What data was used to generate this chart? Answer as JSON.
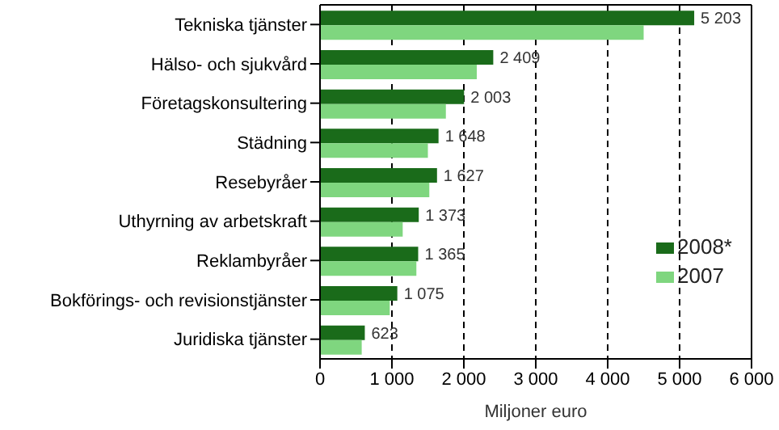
{
  "chart_data": {
    "type": "bar",
    "orientation": "horizontal",
    "xlabel": "Miljoner euro",
    "categories": [
      "Tekniska tjänster",
      "Hälso- och sjukvård",
      "Företagskonsultering",
      "Städning",
      "Resebyråer",
      "Uthyrning av arbetskraft",
      "Reklambyråer",
      "Bokförings- och revisionstjänster",
      "Juridiska tjänster"
    ],
    "series": [
      {
        "name": "2008*",
        "color": "#1a6b1a",
        "values": [
          5203,
          2409,
          2003,
          1648,
          1627,
          1373,
          1365,
          1075,
          623
        ],
        "value_labels": [
          "5 203",
          "2 409",
          "2 003",
          "1 648",
          "1 627",
          "1 373",
          "1 365",
          "1 075",
          "623"
        ]
      },
      {
        "name": "2007",
        "color": "#7fd67f",
        "values": [
          4500,
          2180,
          1750,
          1500,
          1520,
          1150,
          1340,
          970,
          580
        ]
      }
    ],
    "xlim": [
      0,
      6000
    ],
    "xticks": [
      0,
      {
        "value": 1000,
        "label": "1 000"
      },
      {
        "value": 2000,
        "label": "2 000"
      },
      {
        "value": 3000,
        "label": "3 000"
      },
      {
        "value": 4000,
        "label": "4 000"
      },
      {
        "value": 5000,
        "label": "5 000"
      },
      {
        "value": 6000,
        "label": "6 000"
      }
    ],
    "grid": "x",
    "legend": "bottom right"
  }
}
